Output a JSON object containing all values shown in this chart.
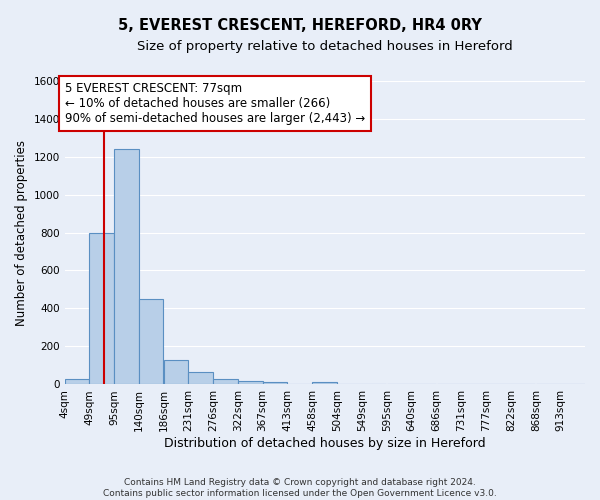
{
  "title": "5, EVEREST CRESCENT, HEREFORD, HR4 0RY",
  "subtitle": "Size of property relative to detached houses in Hereford",
  "xlabel": "Distribution of detached houses by size in Hereford",
  "ylabel": "Number of detached properties",
  "bar_edges": [
    4,
    49,
    95,
    140,
    186,
    231,
    276,
    322,
    367,
    413,
    458,
    504,
    549,
    595,
    640,
    686,
    731,
    777,
    822,
    868,
    913
  ],
  "bar_heights": [
    30,
    800,
    1240,
    450,
    130,
    65,
    30,
    20,
    15,
    0,
    15,
    0,
    0,
    0,
    0,
    0,
    0,
    0,
    0,
    0,
    0
  ],
  "bar_color": "#b8cfe8",
  "bar_edge_color": "#5a8fc2",
  "bar_edge_width": 0.8,
  "red_line_x": 77,
  "red_line_color": "#cc0000",
  "ylim": [
    0,
    1600
  ],
  "yticks": [
    0,
    200,
    400,
    600,
    800,
    1000,
    1200,
    1400,
    1600
  ],
  "bg_color": "#e8eef8",
  "plot_bg_color": "#e8eef8",
  "grid_color": "#ffffff",
  "annotation_text": "5 EVEREST CRESCENT: 77sqm\n← 10% of detached houses are smaller (266)\n90% of semi-detached houses are larger (2,443) →",
  "annotation_box_color": "#ffffff",
  "annotation_box_edge_color": "#cc0000",
  "footer_line1": "Contains HM Land Registry data © Crown copyright and database right 2024.",
  "footer_line2": "Contains public sector information licensed under the Open Government Licence v3.0.",
  "title_fontsize": 10.5,
  "subtitle_fontsize": 9.5,
  "xlabel_fontsize": 9,
  "ylabel_fontsize": 8.5,
  "tick_fontsize": 7.5,
  "footer_fontsize": 6.5,
  "annotation_fontsize": 8.5
}
